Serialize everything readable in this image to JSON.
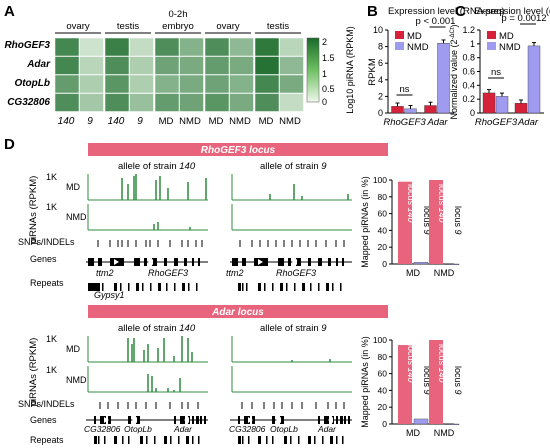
{
  "panels": {
    "A": "A",
    "B": "B",
    "C": "C",
    "D": "D"
  },
  "panelA": {
    "groups": [
      "ovary",
      "testis",
      "0-2h embryo",
      "ovary",
      "testis"
    ],
    "group_line2": "embryo",
    "group_line1": "0-2h",
    "rows": [
      "RhoGEF3",
      "Adar",
      "OtopLb",
      "CG32806"
    ],
    "col_labels": [
      "140",
      "9",
      "140",
      "9",
      "MD",
      "NMD",
      "MD",
      "NMD",
      "MD",
      "NMD"
    ],
    "colorbar": {
      "ticks": [
        "2",
        "1.5",
        "1",
        "0.5",
        "0"
      ],
      "label": "Log10 piRNA (RPKM)"
    },
    "colors": {
      "dark": "#1a6b2a",
      "light": "#eef8ea"
    },
    "heatmap_values": [
      [
        1.6,
        0.3,
        1.7,
        0.4,
        1.5,
        1.0,
        1.5,
        0.9,
        1.8,
        0.5
      ],
      [
        1.6,
        0.5,
        1.5,
        0.6,
        1.2,
        1.1,
        1.3,
        1.1,
        1.9,
        0.9
      ],
      [
        1.3,
        0.6,
        1.4,
        0.6,
        1.0,
        1.1,
        1.2,
        1.0,
        1.6,
        1.1
      ],
      [
        1.5,
        0.7,
        1.5,
        0.8,
        1.3,
        1.2,
        1.4,
        1.1,
        1.5,
        0.4
      ]
    ]
  },
  "chart_data": [
    {
      "type": "bar",
      "title": "Expression level (RNA-seq)",
      "ylabel": "RPKM",
      "categories": [
        "RhoGEF3",
        "Adar"
      ],
      "series": [
        {
          "name": "MD",
          "values": [
            0.8,
            0.9
          ]
        },
        {
          "name": "NMD",
          "values": [
            0.5,
            8.4
          ]
        }
      ],
      "ylim": [
        0,
        10
      ],
      "yticks": [
        "0",
        "2",
        "4",
        "6",
        "8",
        "10"
      ],
      "annotations": [
        "ns",
        "p < 0.001"
      ],
      "colors": {
        "MD": "#d6213a",
        "NMD": "#9f9cf0"
      }
    },
    {
      "type": "bar",
      "title": "Expression level (qPCR)",
      "ylabel": "Normalized value (2",
      "ylabel_sup": "-ΔCt",
      "ylabel_end": ")",
      "categories": [
        "RhoGEF3",
        "Adar"
      ],
      "series": [
        {
          "name": "MD",
          "values": [
            0.29,
            0.14
          ]
        },
        {
          "name": "NMD",
          "values": [
            0.24,
            0.97
          ]
        }
      ],
      "ylim": [
        0,
        1.2
      ],
      "yticks": [
        "0",
        "0.2",
        "0.4",
        "0.6",
        "0.8",
        "1",
        "1.2"
      ],
      "annotations": [
        "ns",
        "p = 0.0012"
      ],
      "colors": {
        "MD": "#d6213a",
        "NMD": "#9f9cf0"
      }
    },
    {
      "type": "bar",
      "ylabel": "Mapped piRNAs (in %)",
      "categories": [
        "MD",
        "NMD"
      ],
      "series": [
        {
          "name": "locus 140",
          "values": [
            98,
            100
          ]
        },
        {
          "name": "locus 9",
          "values": [
            2,
            0
          ]
        }
      ],
      "ylim": [
        0,
        100
      ],
      "yticks": [
        "0",
        "20",
        "40",
        "60",
        "80",
        "100"
      ]
    },
    {
      "type": "bar",
      "ylabel": "Mapped piRNAs (in %)",
      "categories": [
        "MD",
        "NMD"
      ],
      "series": [
        {
          "name": "locus 140",
          "values": [
            94,
            100
          ]
        },
        {
          "name": "locus 9",
          "values": [
            6,
            0
          ]
        }
      ],
      "ylim": [
        0,
        100
      ],
      "yticks": [
        "0",
        "20",
        "40",
        "60",
        "80",
        "100"
      ]
    }
  ],
  "panelD": {
    "locus1": {
      "title": "RhoGEF3 locus",
      "allele_prefix": "allele of strain ",
      "allele_left": "140",
      "allele_right": "9",
      "y_label": "piRNAs (RPKM)",
      "k_label": "1K",
      "md": "MD",
      "nmd": "NMD",
      "snps": "SNPs/INDELs",
      "genes": "Genes",
      "repeats": "Repeats",
      "gene_left": "ttm2",
      "gene_main": "RhoGEF3",
      "repeat_name": "Gypsy1"
    },
    "locus2": {
      "title": "Adar locus",
      "allele_prefix": "allele of strain ",
      "allele_left": "140",
      "allele_right": "9",
      "y_label": "piRNAs (RPKM)",
      "k_label": "1K",
      "md": "MD",
      "nmd": "NMD",
      "snps": "SNPs/INDELs",
      "genes": "Genes",
      "repeats": "Repeats",
      "gene_a": "CG32806",
      "gene_b": "OtopLb",
      "gene_c": "Adar"
    },
    "colors": {
      "banner": "#e8647d",
      "track": "#2e8b3e",
      "locus_bar": "#e8647d"
    }
  }
}
